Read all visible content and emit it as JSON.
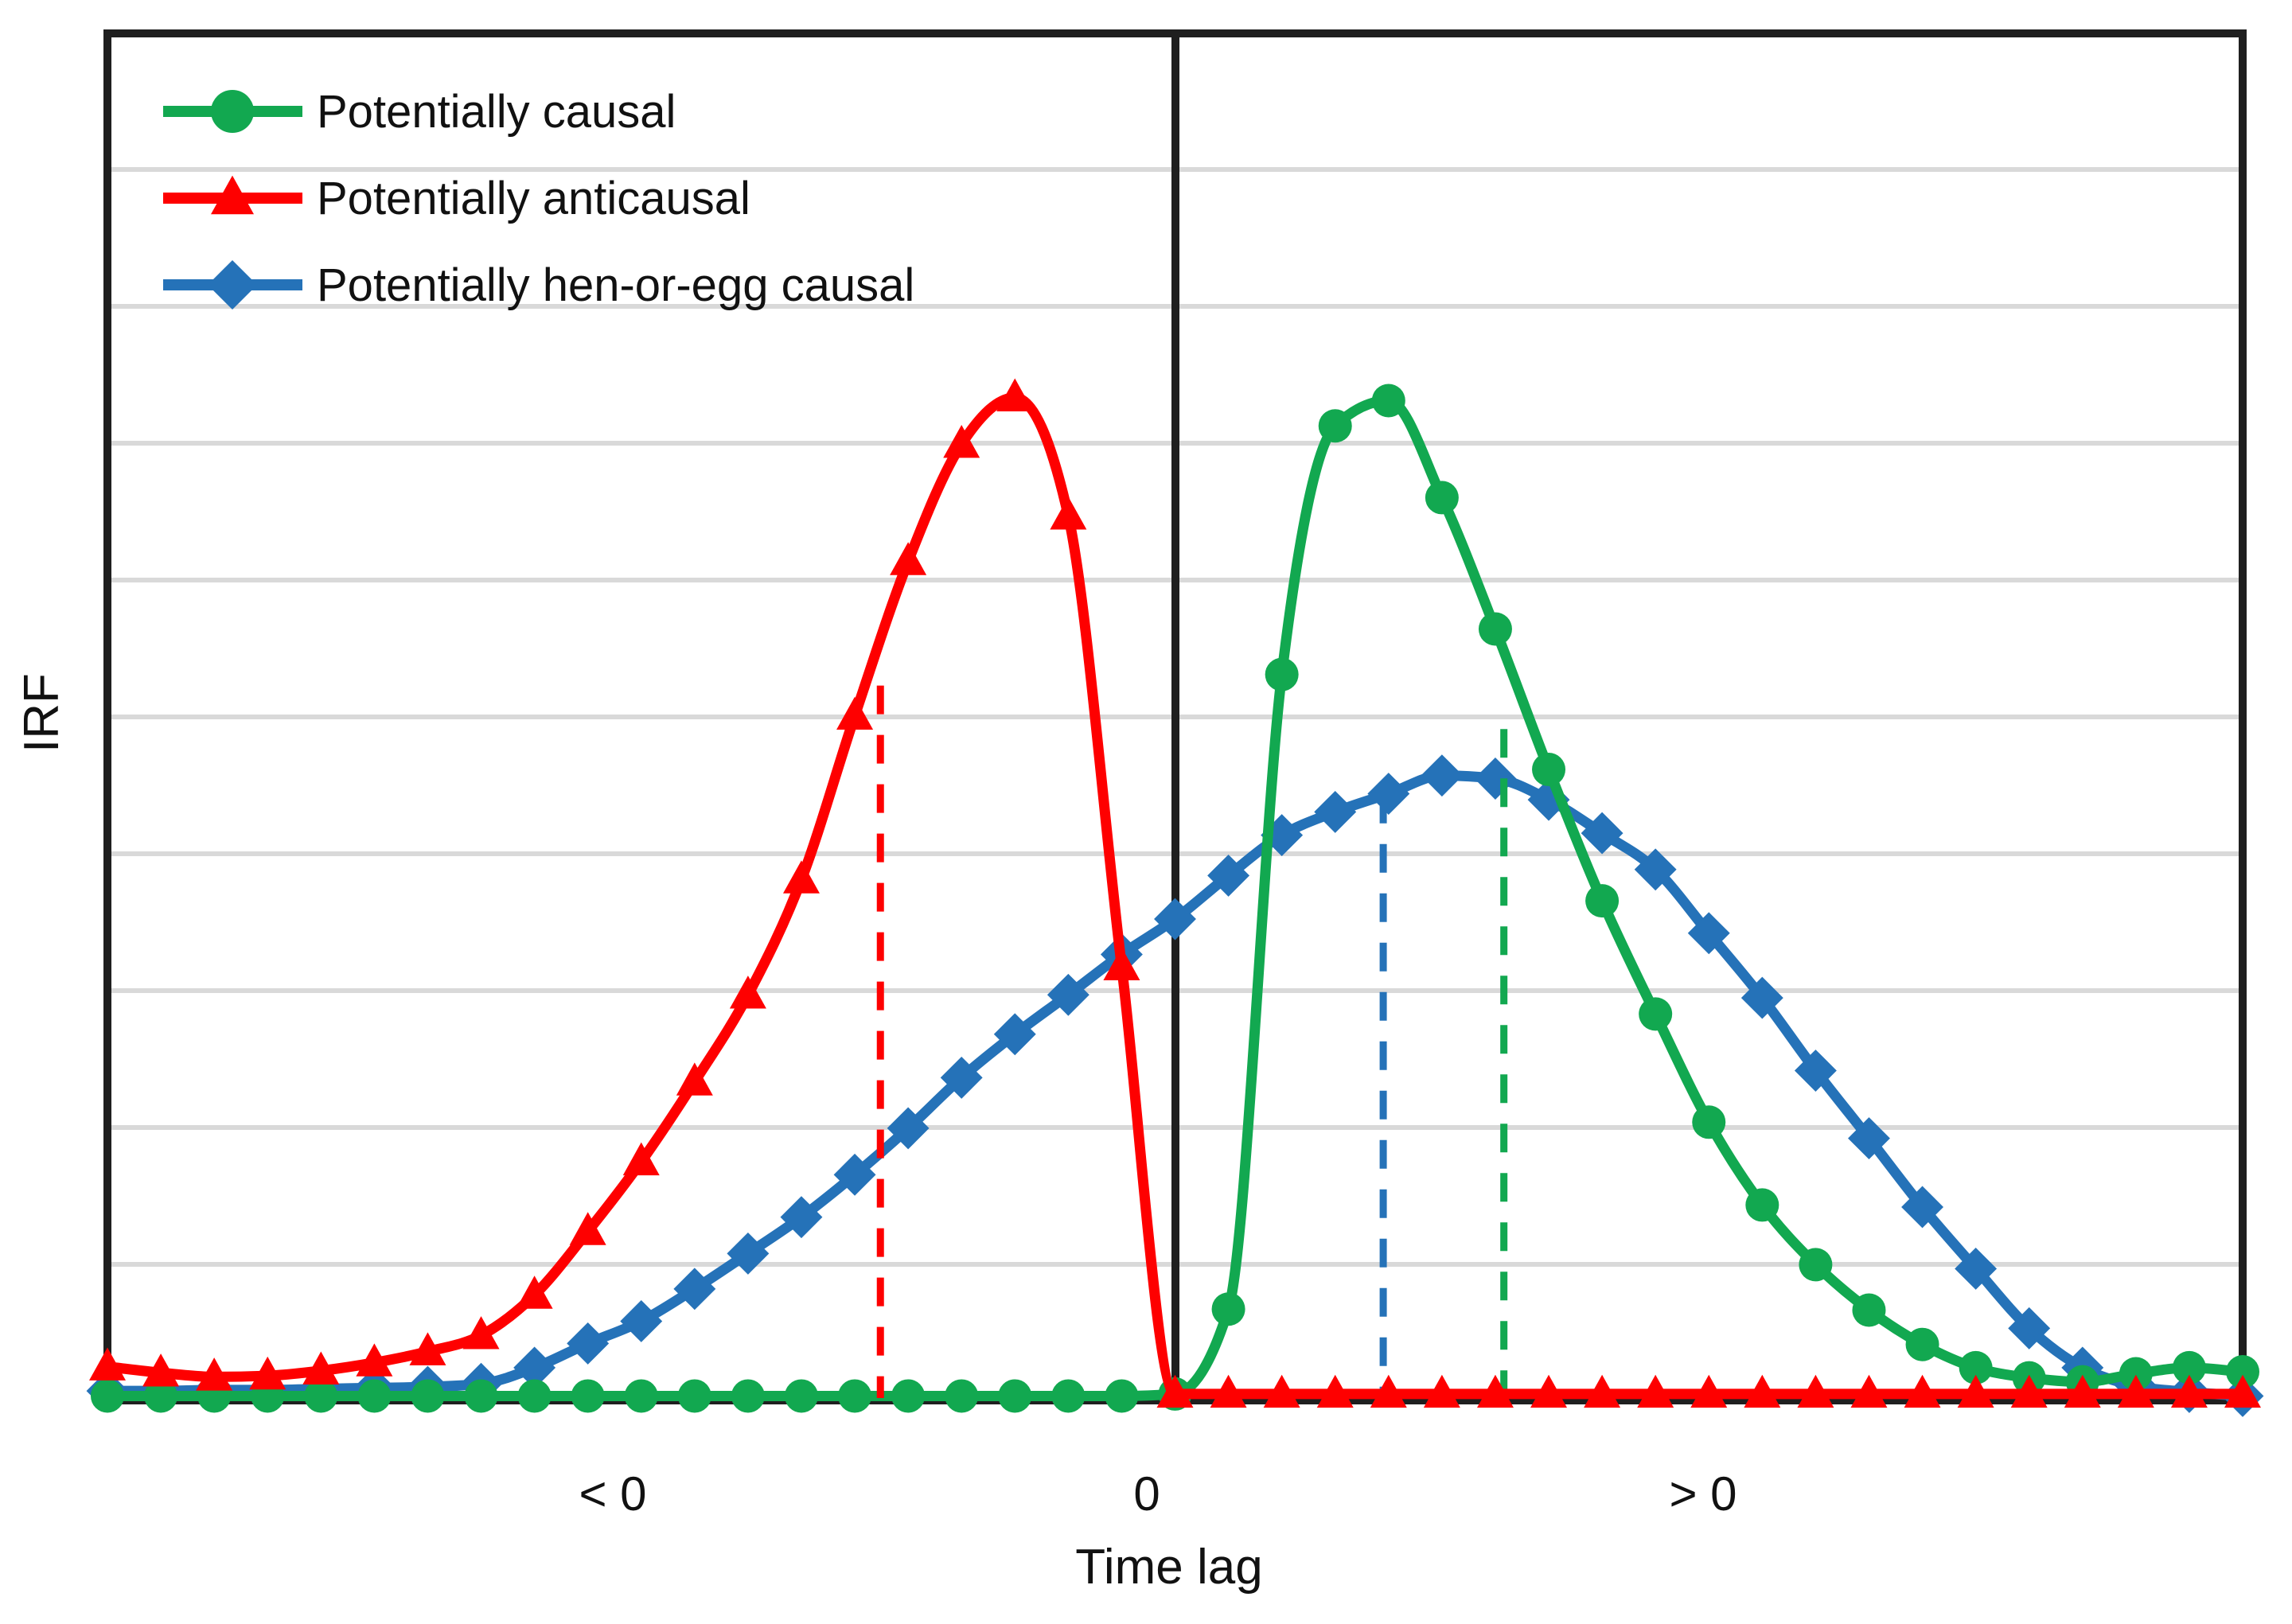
{
  "axes": {
    "ylabel": "IRF",
    "xlabel": "Time lag",
    "x_tick_labels": [
      "< 0",
      "0",
      "> 0"
    ]
  },
  "legend": {
    "items": [
      {
        "label": "Potentially causal",
        "color": "#12A850",
        "marker": "circle"
      },
      {
        "label": "Potentially anticausal",
        "color": "#FE0000",
        "marker": "triangle"
      },
      {
        "label": "Potentially hen-or-egg causal",
        "color": "#2572B8",
        "marker": "diamond"
      }
    ]
  },
  "chart_data": {
    "type": "line",
    "title": "",
    "xlabel": "Time lag",
    "ylabel": "IRF",
    "x_axis_note": "lag units, zero marked by vertical black line",
    "ylim": [
      0,
      1.35
    ],
    "grid": "horizontal",
    "gridline_count": 9,
    "legend_position": "top-left-inside",
    "x": [
      -20,
      -19,
      -18,
      -17,
      -16,
      -15,
      -14,
      -13,
      -12,
      -11,
      -10,
      -9,
      -8,
      -7,
      -6,
      -5,
      -4,
      -3,
      -2,
      -1,
      0,
      1,
      2,
      3,
      4,
      5,
      6,
      7,
      8,
      9,
      10,
      11,
      12,
      13,
      14,
      15,
      16,
      17,
      18,
      19,
      20
    ],
    "series": [
      {
        "name": "Potentially causal",
        "color": "#12A850",
        "marker": "circle",
        "zorder": 2,
        "values": [
          0.002,
          0.002,
          0.002,
          0.002,
          0.002,
          0.002,
          0.002,
          0.002,
          0.002,
          0.002,
          0.002,
          0.002,
          0.002,
          0.002,
          0.002,
          0.002,
          0.002,
          0.002,
          0.002,
          0.002,
          0.004,
          0.088,
          0.716,
          0.962,
          0.987,
          0.891,
          0.761,
          0.622,
          0.492,
          0.38,
          0.273,
          0.191,
          0.132,
          0.087,
          0.053,
          0.03,
          0.02,
          0.016,
          0.024,
          0.03,
          0.026
        ]
      },
      {
        "name": "Potentially anticausal",
        "color": "#FE0000",
        "marker": "triangle",
        "zorder": 3,
        "values": [
          0.031,
          0.025,
          0.021,
          0.022,
          0.027,
          0.035,
          0.046,
          0.062,
          0.102,
          0.165,
          0.234,
          0.313,
          0.399,
          0.513,
          0.675,
          0.828,
          0.944,
          0.99,
          0.873,
          0.427,
          0.004,
          0.004,
          0.004,
          0.004,
          0.004,
          0.004,
          0.004,
          0.004,
          0.004,
          0.004,
          0.004,
          0.004,
          0.004,
          0.004,
          0.004,
          0.004,
          0.004,
          0.004,
          0.004,
          0.004,
          0.004
        ]
      },
      {
        "name": "Potentially hen-or-egg causal",
        "color": "#2572B8",
        "marker": "diamond",
        "zorder": 1,
        "values": [
          0.007,
          0.007,
          0.008,
          0.008,
          0.009,
          0.01,
          0.011,
          0.014,
          0.03,
          0.054,
          0.076,
          0.108,
          0.143,
          0.179,
          0.221,
          0.267,
          0.317,
          0.36,
          0.399,
          0.439,
          0.474,
          0.517,
          0.557,
          0.58,
          0.598,
          0.616,
          0.613,
          0.592,
          0.559,
          0.523,
          0.46,
          0.396,
          0.324,
          0.257,
          0.189,
          0.128,
          0.069,
          0.03,
          0.012,
          0.006,
          0.002
        ]
      }
    ],
    "drop_lines": [
      {
        "series": "Potentially anticausal",
        "x": -5.52,
        "top": 0.705,
        "color": "#FE0000"
      },
      {
        "series": "Potentially hen-or-egg causal",
        "x": 3.9,
        "top": 0.597,
        "color": "#2572B8"
      },
      {
        "series": "Potentially causal",
        "x": 6.16,
        "top": 0.662,
        "color": "#12A850"
      }
    ],
    "zero_line": {
      "x": 0,
      "color": "#1f1f1f"
    }
  }
}
